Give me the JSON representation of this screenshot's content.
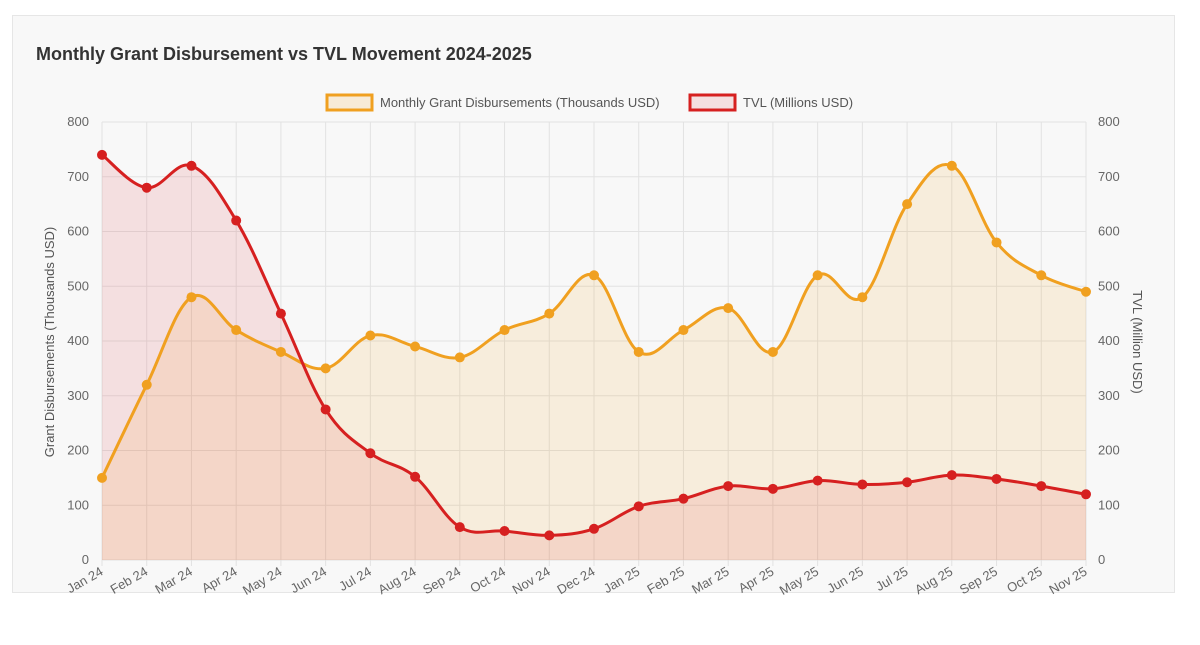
{
  "chart_data": {
    "type": "line",
    "title": "Monthly Grant Disbursement vs TVL Movement 2024-2025",
    "categories": [
      "Jan 24",
      "Feb 24",
      "Mar 24",
      "Apr 24",
      "May 24",
      "Jun 24",
      "Jul 24",
      "Aug 24",
      "Sep 24",
      "Oct 24",
      "Nov 24",
      "Dec 24",
      "Jan 25",
      "Feb 25",
      "Mar 25",
      "Apr 25",
      "May 25",
      "Jun 25",
      "Jul 25",
      "Aug 25",
      "Sep 25",
      "Oct 25",
      "Nov 25"
    ],
    "series": [
      {
        "name": "Monthly Grant Disbursements (Thousands USD)",
        "axis": "left",
        "color": "#f0a020",
        "fill": "rgba(240,160,32,0.13)",
        "values": [
          150,
          320,
          480,
          420,
          380,
          350,
          410,
          390,
          370,
          420,
          450,
          520,
          380,
          420,
          460,
          380,
          520,
          480,
          650,
          720,
          580,
          520,
          490
        ]
      },
      {
        "name": "TVL (Millions USD)",
        "axis": "right",
        "color": "#d62020",
        "fill": "rgba(220,50,60,0.12)",
        "values": [
          740,
          680,
          720,
          620,
          450,
          275,
          195,
          152,
          60,
          53,
          45,
          57,
          98,
          112,
          135,
          130,
          145,
          138,
          142,
          155,
          148,
          135,
          120
        ]
      }
    ],
    "ylabel": "Grant Disbursements (Thousands USD)",
    "y2label": "TVL (Million USD)",
    "ylim": [
      0,
      800
    ],
    "y2lim": [
      0,
      800
    ],
    "yticks": [
      0,
      100,
      200,
      300,
      400,
      500,
      600,
      700,
      800
    ],
    "grid": true,
    "legend_position": "top-center"
  }
}
